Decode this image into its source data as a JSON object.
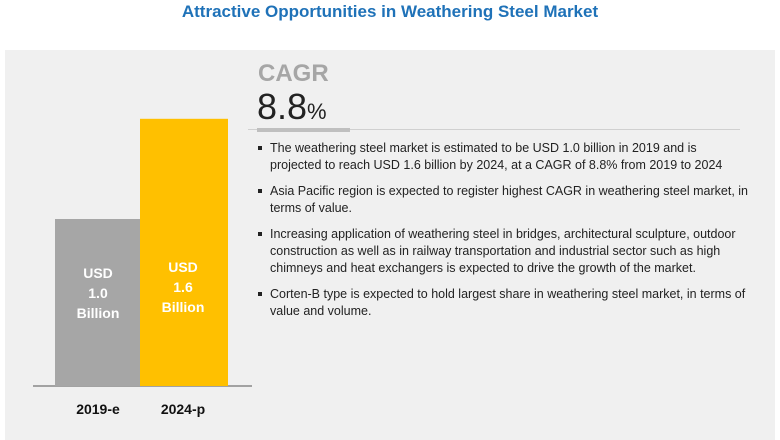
{
  "title": "Attractive Opportunities in Weathering Steel Market",
  "cagr": {
    "label": "CAGR",
    "value": "8.8",
    "unit": "%"
  },
  "bullets": [
    "The weathering steel market is estimated to be USD 1.0 billion in 2019 and is projected to reach USD 1.6 billion by 2024, at a CAGR of 8.8% from 2019 to 2024",
    "Asia Pacific region is expected to register highest CAGR in weathering steel market, in terms of value.",
    "Increasing application of weathering steel in bridges, architectural sculpture, outdoor construction as well as in railway transportation and industrial sector such as high chimneys and heat exchangers is expected to drive the growth of the market.",
    "Corten-B type is expected to hold largest share in weathering steel market, in terms of value and volume."
  ],
  "chart_data": {
    "type": "bar",
    "categories": [
      "2019-e",
      "2024-p"
    ],
    "values": [
      1.0,
      1.6
    ],
    "data_labels": [
      [
        "USD",
        "1.0",
        "Billion"
      ],
      [
        "USD",
        "1.6",
        "Billion"
      ]
    ],
    "unit": "USD Billion",
    "colors": [
      "#a6a6a6",
      "#ffc000"
    ],
    "grid": false
  }
}
